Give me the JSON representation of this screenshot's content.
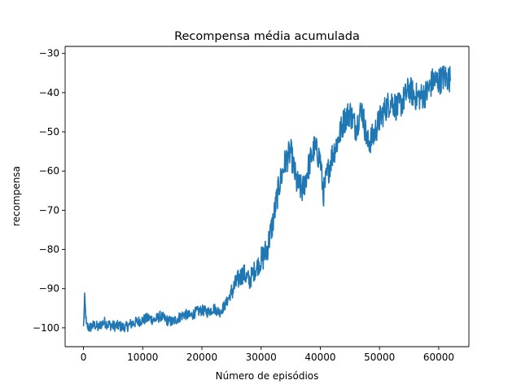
{
  "chart_data": {
    "type": "line",
    "title": "Recompensa média acumulada",
    "xlabel": "Número de episódios",
    "ylabel": "recompensa",
    "xlim": [
      -3100,
      65100
    ],
    "ylim": [
      -104.8,
      -28.2
    ],
    "xticks": [
      0,
      10000,
      20000,
      30000,
      40000,
      50000,
      60000
    ],
    "xtick_labels": [
      "0",
      "10000",
      "20000",
      "30000",
      "40000",
      "50000",
      "60000"
    ],
    "yticks": [
      -100,
      -90,
      -80,
      -70,
      -60,
      -50,
      -40,
      -30
    ],
    "ytick_labels": [
      "−100",
      "−90",
      "−80",
      "−70",
      "−60",
      "−50",
      "−40",
      "−30"
    ],
    "grid": false,
    "series": [
      {
        "color": "#1f77b4",
        "x": [
          0,
          200,
          500,
          1000,
          1500,
          2000,
          2500,
          3000,
          3500,
          4000,
          5000,
          6000,
          7000,
          8000,
          9000,
          10000,
          11000,
          12000,
          13000,
          14000,
          15000,
          16000,
          17000,
          18000,
          19000,
          20000,
          21000,
          22000,
          23000,
          24000,
          25000,
          26000,
          27000,
          28000,
          29000,
          30000,
          31000,
          32000,
          33000,
          34000,
          35000,
          36000,
          37000,
          38000,
          39000,
          40000,
          40500,
          41000,
          42000,
          43000,
          44000,
          45000,
          46000,
          47000,
          48000,
          49000,
          50000,
          51000,
          52000,
          53000,
          54000,
          55000,
          56000,
          57000,
          58000,
          59000,
          60000,
          61000,
          62000
        ],
        "y": [
          -100,
          -92.5,
          -99.5,
          -100,
          -99.5,
          -99.3,
          -100,
          -99,
          -98.5,
          -99,
          -99.5,
          -99.5,
          -100,
          -99,
          -98.5,
          -98,
          -97.5,
          -98,
          -97,
          -98,
          -98.5,
          -97.5,
          -96.5,
          -97,
          -96,
          -95.5,
          -96,
          -95,
          -96,
          -94,
          -91,
          -88,
          -86,
          -88,
          -85,
          -83,
          -80,
          -73,
          -64,
          -58,
          -55,
          -63,
          -65,
          -59,
          -54,
          -57,
          -66,
          -62,
          -56,
          -52,
          -47,
          -45,
          -49,
          -44,
          -53,
          -51,
          -47,
          -44,
          -42,
          -44,
          -42,
          -39,
          -41,
          -41,
          -40,
          -37,
          -37,
          -36,
          -36.5
        ]
      }
    ]
  }
}
